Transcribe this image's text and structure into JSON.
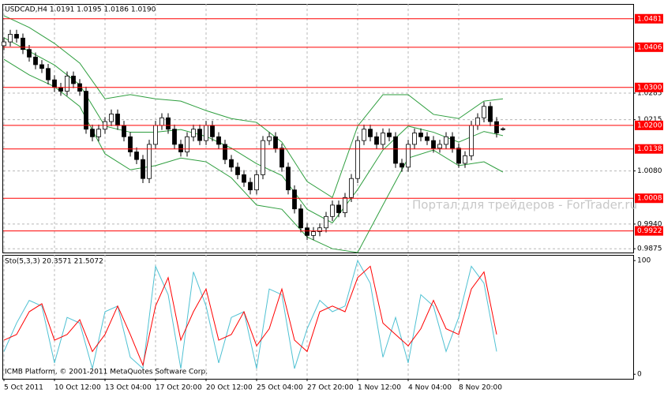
{
  "chart_data": [
    {
      "type": "candlestick",
      "title": "USDCAD,H4  1.0191 1.0195 1.0186 1.0190",
      "categories": [
        "5 Oct 2011",
        null,
        null,
        null,
        null,
        null,
        null,
        null,
        "10 Oct 12:00",
        null,
        null,
        null,
        null,
        null,
        null,
        null,
        "13 Oct 04:00",
        null,
        null,
        null,
        null,
        null,
        null,
        null,
        "17 Oct 20:00",
        null,
        null,
        null,
        null,
        null,
        null,
        null,
        "20 Oct 12:00",
        null,
        null,
        null,
        null,
        null,
        null,
        null,
        "25 Oct 04:00",
        null,
        null,
        null,
        null,
        null,
        null,
        null,
        "27 Oct 20:00",
        null,
        null,
        null,
        null,
        null,
        null,
        null,
        "1 Nov 12:00",
        null,
        null,
        null,
        null,
        null,
        null,
        null,
        "4 Nov 04:00",
        null,
        null,
        null,
        null,
        null,
        null,
        null,
        "8 Nov 20:00",
        null,
        null,
        null,
        null,
        null,
        null,
        null
      ],
      "open": [
        1.041,
        1.042,
        1.044,
        1.043,
        1.04,
        1.038,
        1.036,
        1.035,
        1.032,
        1.03,
        1.029,
        1.033,
        1.031,
        1.029,
        1.019,
        1.017,
        1.019,
        1.021,
        1.023,
        1.02,
        1.017,
        1.013,
        1.011,
        1.006,
        1.015,
        1.02,
        1.022,
        1.019,
        1.015,
        1.013,
        1.017,
        1.019,
        1.016,
        1.02,
        1.017,
        1.015,
        1.011,
        1.009,
        1.007,
        1.005,
        1.003,
        1.007,
        1.016,
        1.017,
        1.014,
        1.009,
        1.003,
        0.998,
        0.993,
        0.991,
        0.992,
        0.993,
        0.996,
        0.999,
        0.997,
        1.001,
        1.006,
        1.016,
        1.019,
        1.017,
        1.015,
        1.018,
        1.017,
        1.01,
        1.009,
        1.015,
        1.018,
        1.017,
        1.016,
        1.014,
        1.015,
        1.017,
        1.014,
        1.01,
        1.012,
        1.02,
        1.022,
        1.025,
        1.021,
        1.0191
      ],
      "high": [
        1.0432,
        1.0452,
        1.0452,
        1.0442,
        1.0412,
        1.0392,
        1.0372,
        1.0362,
        1.0332,
        1.0312,
        1.0342,
        1.0342,
        1.0322,
        1.0302,
        1.0202,
        1.0202,
        1.0222,
        1.0242,
        1.0242,
        1.0212,
        1.0182,
        1.0142,
        1.0122,
        1.0162,
        1.0212,
        1.0232,
        1.0232,
        1.0202,
        1.0162,
        1.0182,
        1.0202,
        1.0202,
        1.0212,
        1.0212,
        1.0182,
        1.0162,
        1.0122,
        1.0102,
        1.0082,
        1.0062,
        1.0082,
        1.0172,
        1.0182,
        1.0182,
        1.0152,
        1.0102,
        1.0042,
        0.9992,
        0.9942,
        0.9932,
        0.9942,
        0.9972,
        1.0002,
        1.0002,
        1.0022,
        1.0072,
        1.0172,
        1.0202,
        1.0202,
        1.0182,
        1.0192,
        1.0192,
        1.0182,
        1.0112,
        1.0162,
        1.0192,
        1.0192,
        1.0182,
        1.0172,
        1.0162,
        1.0182,
        1.0182,
        1.0152,
        1.0132,
        1.0212,
        1.0232,
        1.0262,
        1.0262,
        1.0222,
        1.0195
      ],
      "low": [
        1.0398,
        1.0408,
        1.0418,
        1.0388,
        1.0368,
        1.0348,
        1.0338,
        1.0308,
        1.0288,
        1.0278,
        1.0278,
        1.0298,
        1.0278,
        1.0178,
        1.0158,
        1.0158,
        1.0178,
        1.0198,
        1.0188,
        1.0158,
        1.0118,
        1.0098,
        1.0048,
        1.0048,
        1.0138,
        1.0188,
        1.0178,
        1.0138,
        1.0118,
        1.0118,
        1.0158,
        1.0148,
        1.0148,
        1.0158,
        1.0138,
        1.0098,
        1.0078,
        1.0058,
        1.0038,
        1.0018,
        1.0018,
        1.0058,
        1.0148,
        1.0128,
        1.0078,
        1.0018,
        0.9968,
        0.9918,
        0.9898,
        0.9898,
        0.9908,
        0.9918,
        0.9948,
        0.9958,
        0.9958,
        0.9998,
        1.0048,
        1.0148,
        1.0158,
        1.0138,
        1.0138,
        1.0158,
        1.0088,
        1.0078,
        1.0078,
        1.0138,
        1.0158,
        1.0148,
        1.0128,
        1.0128,
        1.0138,
        1.0128,
        1.0088,
        1.0088,
        1.0108,
        1.0188,
        1.0208,
        1.0198,
        1.0168,
        1.0186
      ],
      "close": [
        1.042,
        1.044,
        1.043,
        1.04,
        1.038,
        1.036,
        1.035,
        1.032,
        1.03,
        1.029,
        1.033,
        1.031,
        1.029,
        1.019,
        1.017,
        1.019,
        1.021,
        1.023,
        1.02,
        1.017,
        1.013,
        1.011,
        1.006,
        1.015,
        1.02,
        1.022,
        1.019,
        1.015,
        1.013,
        1.017,
        1.019,
        1.016,
        1.02,
        1.017,
        1.015,
        1.011,
        1.009,
        1.007,
        1.005,
        1.003,
        1.007,
        1.016,
        1.017,
        1.014,
        1.009,
        1.003,
        0.998,
        0.993,
        0.991,
        0.992,
        0.993,
        0.996,
        0.999,
        0.997,
        1.001,
        1.006,
        1.016,
        1.019,
        1.017,
        1.015,
        1.018,
        1.017,
        1.01,
        1.009,
        1.015,
        1.018,
        1.017,
        1.016,
        1.014,
        1.015,
        1.017,
        1.014,
        1.01,
        1.012,
        1.02,
        1.022,
        1.025,
        1.021,
        1.018,
        1.019
      ],
      "bands": {
        "color": "#2e9e3e",
        "x": [
          0,
          4,
          8,
          12,
          16,
          20,
          24,
          28,
          32,
          36,
          40,
          44,
          48,
          52,
          56,
          60,
          64,
          68,
          72,
          76,
          79
        ],
        "upper": [
          1.0489,
          1.0458,
          1.0416,
          1.0364,
          1.027,
          1.0281,
          1.027,
          1.0264,
          1.0239,
          1.0218,
          1.0208,
          1.0156,
          1.0052,
          1.001,
          1.0198,
          1.0281,
          1.0281,
          1.0229,
          1.0218,
          1.0264,
          1.027
        ],
        "middle": [
          1.0431,
          1.0395,
          1.0359,
          1.0307,
          1.0198,
          1.0182,
          1.0182,
          1.0189,
          1.0171,
          1.014,
          1.0099,
          1.0068,
          0.9979,
          0.9943,
          1.0031,
          1.0135,
          1.0198,
          1.0182,
          1.0156,
          1.0184,
          1.0173
        ],
        "lower": [
          1.0374,
          1.0333,
          1.0302,
          1.025,
          1.0125,
          1.0083,
          1.0094,
          1.0114,
          1.0104,
          1.0062,
          0.999,
          0.9979,
          0.9906,
          0.9875,
          0.9865,
          0.999,
          1.0114,
          1.0135,
          1.0094,
          1.0104,
          1.0077
        ]
      },
      "ylim": [
        0.9865,
        1.052
      ],
      "yticks": [
        1.0285,
        1.0215,
        {
          "value": 1.008,
          "label": "1.0080"
        },
        {
          "value": 0.994,
          "label": "0.9940"
        },
        0.9875
      ],
      "levels": [
        {
          "value": 1.0481,
          "label": "1.0481"
        },
        {
          "value": 1.0406,
          "label": "1.0406"
        },
        {
          "value": 1.03,
          "label": "1.0300"
        },
        {
          "value": 1.02,
          "label": "1.0200"
        },
        {
          "value": 1.0138,
          "label": "1.0138"
        },
        {
          "value": 1.0008,
          "label": "1.0008"
        },
        {
          "value": 0.9922,
          "label": "0.9922"
        }
      ],
      "level_color": "#ff0000",
      "annotations": [
        "Портал для трейдеров - ForTrader.ru"
      ],
      "grid": true
    },
    {
      "type": "line",
      "title": "Sto(5,3,3) 20.3571 21.5072",
      "x": [
        0,
        2,
        4,
        6,
        8,
        10,
        12,
        14,
        16,
        18,
        20,
        22,
        24,
        26,
        28,
        30,
        32,
        34,
        36,
        38,
        40,
        42,
        44,
        46,
        48,
        50,
        52,
        54,
        56,
        58,
        60,
        62,
        64,
        66,
        68,
        70,
        72,
        74,
        76,
        78
      ],
      "series": [
        {
          "color": "#4fc1d3",
          "values": [
            20,
            45,
            65,
            60,
            10,
            50,
            45,
            5,
            55,
            60,
            15,
            5,
            95,
            70,
            5,
            90,
            60,
            10,
            50,
            55,
            5,
            75,
            70,
            5,
            40,
            65,
            55,
            60,
            100,
            80,
            15,
            50,
            10,
            70,
            60,
            20,
            50,
            95,
            80,
            20
          ]
        },
        {
          "color": "#ff0000",
          "values": [
            30,
            35,
            55,
            62,
            30,
            35,
            48,
            20,
            35,
            60,
            35,
            8,
            60,
            85,
            30,
            55,
            75,
            30,
            35,
            55,
            25,
            40,
            75,
            30,
            20,
            55,
            60,
            55,
            85,
            95,
            45,
            35,
            25,
            40,
            65,
            40,
            35,
            75,
            90,
            35
          ]
        }
      ],
      "ylim": [
        -4,
        105
      ],
      "yticks": [
        0,
        100
      ],
      "annotations": [
        "ICMB Platform, © 2001-2011 MetaQuotes Software Corp."
      ]
    }
  ]
}
